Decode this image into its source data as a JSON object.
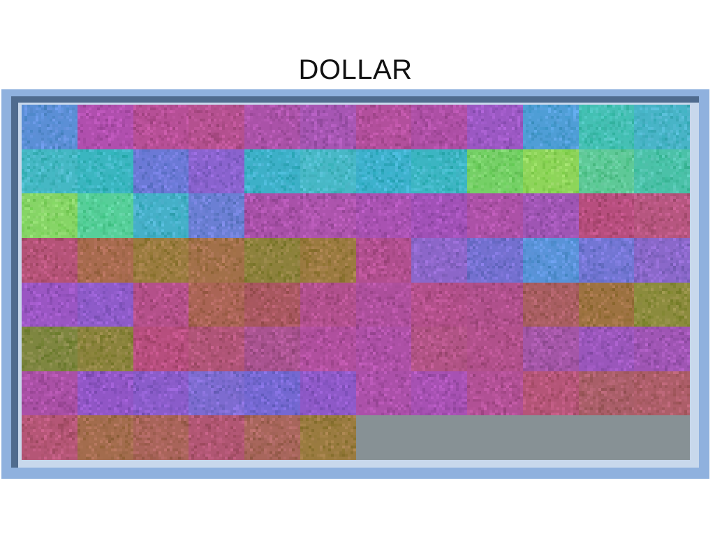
{
  "title": "DOLLAR",
  "palette": {
    "frame": "#8fb1de",
    "frame_shadow": "#4f6b8e",
    "frame_inner": "#c8d8ec",
    "empty_region": "#879195"
  },
  "grid": {
    "rows": 8,
    "cols": 12,
    "tile_colors": [
      [
        "#5b8fd6",
        "#b04fae",
        "#b64f96",
        "#b4508f",
        "#aa52a8",
        "#a656b3",
        "#b24f9c",
        "#ad4fa5",
        "#9b58c3",
        "#4f9ed6",
        "#45c0b4",
        "#48b4c7"
      ],
      [
        "#45b8c4",
        "#3ab6c0",
        "#6b79d6",
        "#8a63cf",
        "#3db0c8",
        "#48b8c6",
        "#3db1cc",
        "#3cb5c2",
        "#75d066",
        "#8ed55a",
        "#5ec997",
        "#4bc1a8"
      ],
      [
        "#86d566",
        "#56cf99",
        "#45b0c8",
        "#6b7fd4",
        "#a951a9",
        "#ad54ad",
        "#a952b2",
        "#a151b7",
        "#ac51a7",
        "#9f55b4",
        "#b74e7e",
        "#b75680"
      ],
      [
        "#b55378",
        "#a86b4f",
        "#9a7b3f",
        "#a27049",
        "#8d813c",
        "#9b7a40",
        "#b14f8f",
        "#8c66c9",
        "#7470d0",
        "#5993d8",
        "#7376d4",
        "#8a68ca"
      ],
      [
        "#9a56c3",
        "#8e5bc9",
        "#b4508a",
        "#aa6455",
        "#a8575f",
        "#b04f8c",
        "#ad4f9c",
        "#b24f8a",
        "#b0508c",
        "#a95e62",
        "#9d7241",
        "#8b8b3d"
      ],
      [
        "#7e8640",
        "#8b833d",
        "#b74e7e",
        "#b05477",
        "#a95390",
        "#b04f9e",
        "#ad50a6",
        "#b15385",
        "#b1508b",
        "#a456a7",
        "#9a56bb",
        "#9f55b4"
      ],
      [
        "#aa50a6",
        "#9156c6",
        "#8a5cca",
        "#7d6bd0",
        "#7568d2",
        "#8e59c8",
        "#ab50a9",
        "#a751b3",
        "#b15095",
        "#b55578",
        "#a95e68",
        "#ad5e69"
      ],
      [
        "#b55676",
        "#a36c4d",
        "#a9645a",
        "#b15673",
        "#a8665c",
        "#9a7b40"
      ]
    ]
  }
}
